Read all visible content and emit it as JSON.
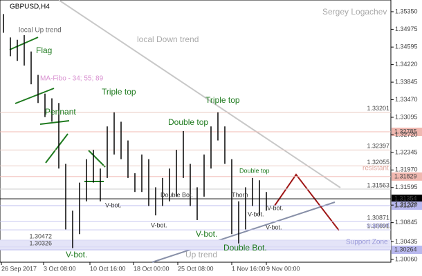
{
  "chart_data": {
    "type": "ohlc",
    "title": "GBPUSD,H4",
    "author": "Sergey Logachev",
    "ylim": [
      1.3,
      1.356
    ],
    "yticks": [
      {
        "value": 1.3535,
        "label": "1.35350"
      },
      1.34975,
      1.34595,
      {
        "value": 1.3422,
        "label": "1.34220"
      },
      1.33845,
      {
        "value": 1.3347,
        "label": "1.33470"
      },
      1.33095,
      {
        "value": 1.3272,
        "label": "1.32720"
      },
      1.32345,
      {
        "value": 1.3197,
        "label": "1.31970"
      },
      1.31595,
      {
        "value": 1.3122,
        "label": "1.31220"
      },
      1.30845,
      1.30435,
      {
        "value": 1.3006,
        "label": "1.30060"
      }
    ],
    "x_labels": [
      "26 Sep 2017",
      "3 Oct 08:00",
      "10 Oct 16:00",
      "18 Oct 00:00",
      "25 Oct 08:00",
      "1 Nov 16:00",
      "9 Nov 00:00"
    ],
    "high": [
      1.353,
      1.348,
      1.3475,
      1.3485,
      1.345,
      1.34,
      1.336,
      1.335,
      1.334,
      1.321,
      1.311,
      1.317,
      1.322,
      1.324,
      1.32,
      1.329,
      1.332,
      1.33,
      1.326,
      1.319,
      1.323,
      1.322,
      1.316,
      1.318,
      1.32,
      1.324,
      1.328,
      1.321,
      1.316,
      1.323,
      1.329,
      1.332,
      1.329,
      1.322,
      1.313,
      1.316,
      1.318,
      1.3175,
      1.315
    ],
    "low": [
      1.349,
      1.344,
      1.343,
      1.342,
      1.338,
      1.334,
      1.331,
      1.33,
      1.32,
      1.307,
      1.303,
      1.306,
      1.313,
      1.317,
      1.313,
      1.318,
      1.323,
      1.322,
      1.318,
      1.315,
      1.315,
      1.312,
      1.31,
      1.312,
      1.313,
      1.314,
      1.318,
      1.312,
      1.309,
      1.314,
      1.32,
      1.326,
      1.321,
      1.306,
      1.304,
      1.307,
      1.312,
      1.31,
      1.311
    ],
    "color": "#000000",
    "levels": [
      {
        "value": 1.33201,
        "color": "#e8c8c0"
      },
      {
        "value": 1.32785,
        "color": "#f0b8b0",
        "boxed": true
      },
      {
        "value": 1.32397,
        "color": "#e8c8c0"
      },
      {
        "value": 1.32055,
        "color": "#e8c8c0"
      },
      {
        "value": 1.31829,
        "color": "#f0b8b0",
        "boxed": true
      },
      {
        "value": 1.31563,
        "color": "#cccccc"
      },
      {
        "value": 1.31354,
        "color": "#000000",
        "boxed": true
      },
      {
        "value": 1.31207,
        "color": "#b8b8ee",
        "boxed": true
      },
      {
        "value": 1.30871,
        "color": "#c8c8f0"
      },
      {
        "value": 1.30691,
        "color": "#c8c8f0"
      },
      {
        "value": 1.30472,
        "color": "#d8d8f4"
      },
      {
        "value": 1.30326,
        "color": "#d8d8f4"
      },
      {
        "value": 1.30264,
        "color": "#b8b8ee",
        "boxed": true
      }
    ],
    "zones": [
      "resistant",
      "support",
      "Support Zone"
    ],
    "annotations": [
      "local  Up trend",
      "Flag",
      "MA-Fibo - 34; 55; 89",
      "Triple top",
      "local Down trend",
      "Triple top",
      "Pennant",
      "Double top",
      "Double top",
      "Thorn",
      "V-bot.",
      "Double Bot.",
      "V-bot.",
      "V-bot.",
      "V-bot.",
      "V-bot.",
      "Double Bot.",
      "V-bot.",
      "Up trend",
      "V-bot."
    ]
  }
}
